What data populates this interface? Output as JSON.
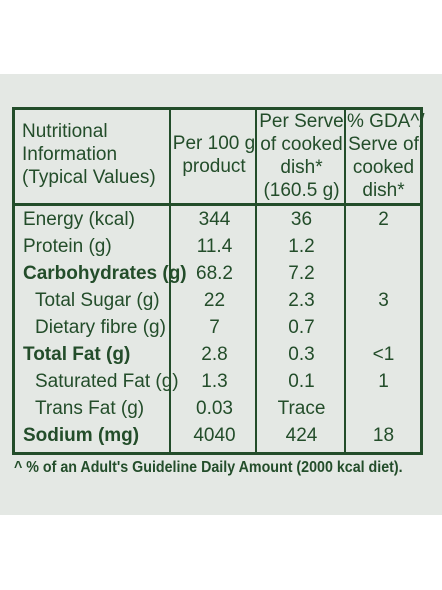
{
  "headers": {
    "col0": [
      "Nutritional",
      "Information",
      "(Typical Values)"
    ],
    "col1": [
      "Per 100 g",
      "product"
    ],
    "col2": [
      "Per Serve",
      "of cooked",
      "dish*",
      "(160.5 g)"
    ],
    "col3": [
      "% GDA^/",
      "Serve of",
      "cooked",
      "dish*"
    ]
  },
  "rows": [
    {
      "label": "Energy (kcal)",
      "per100": "344",
      "perServe": "36",
      "gda": "2"
    },
    {
      "label": "Protein (g)",
      "per100": "11.4",
      "perServe": "1.2",
      "gda": ""
    },
    {
      "label": "Carbohydrates (g)",
      "per100": "68.2",
      "perServe": "7.2",
      "gda": ""
    },
    {
      "label": "Total Sugar (g)",
      "per100": "22",
      "perServe": "2.3",
      "gda": "3"
    },
    {
      "label": "Dietary fibre (g)",
      "per100": "7",
      "perServe": "0.7",
      "gda": ""
    },
    {
      "label": "Total Fat (g)",
      "per100": "2.8",
      "perServe": "0.3",
      "gda": "<1"
    },
    {
      "label": "Saturated Fat (g)",
      "per100": "1.3",
      "perServe": "0.1",
      "gda": "1"
    },
    {
      "label": "Trans Fat (g)",
      "per100": "0.03",
      "perServe": "Trace",
      "gda": ""
    },
    {
      "label": "Sodium (mg)",
      "per100": "4040",
      "perServe": "424",
      "gda": "18"
    }
  ],
  "footnote": "^ % of an Adult's Guideline Daily Amount (2000 kcal diet).",
  "colors": {
    "text": "#234d2a",
    "background": "#e4e8e4"
  }
}
